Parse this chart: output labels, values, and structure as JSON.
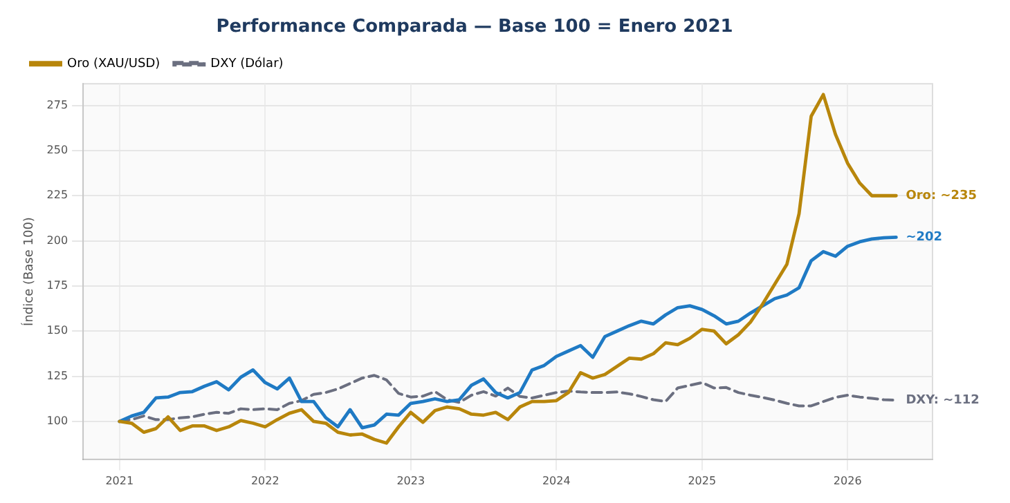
{
  "chart_data": {
    "type": "line",
    "title": "Performance Comparada — Base 100 = Enero 2021",
    "ylabel": "Índice (Base 100)",
    "x": [
      "2021-01",
      "2021-02",
      "2021-03",
      "2021-04",
      "2021-05",
      "2021-06",
      "2021-07",
      "2021-08",
      "2021-09",
      "2021-10",
      "2021-11",
      "2021-12",
      "2022-01",
      "2022-02",
      "2022-03",
      "2022-04",
      "2022-05",
      "2022-06",
      "2022-07",
      "2022-08",
      "2022-09",
      "2022-10",
      "2022-11",
      "2022-12",
      "2023-01",
      "2023-02",
      "2023-03",
      "2023-04",
      "2023-05",
      "2023-06",
      "2023-07",
      "2023-08",
      "2023-09",
      "2023-10",
      "2023-11",
      "2023-12",
      "2024-01",
      "2024-02",
      "2024-03",
      "2024-04",
      "2024-05",
      "2024-06",
      "2024-07",
      "2024-08",
      "2024-09",
      "2024-10",
      "2024-11",
      "2024-12",
      "2025-01",
      "2025-02",
      "2025-03",
      "2025-04",
      "2025-05",
      "2025-06",
      "2025-07",
      "2025-08",
      "2025-09",
      "2025-10",
      "2025-11",
      "2025-12",
      "2026-01",
      "2026-02",
      "2026-03",
      "2026-04",
      "2026-05"
    ],
    "series": [
      {
        "name": "Oro (XAU/USD)",
        "color": "#b8860b",
        "line_style": "solid",
        "values": [
          100,
          99,
          94,
          96,
          102.5,
          95,
          97.5,
          97.5,
          95,
          97,
          100.5,
          99,
          97,
          101,
          104.5,
          106.5,
          100,
          99,
          94,
          92.5,
          93,
          90,
          88,
          97,
          105,
          99.5,
          106,
          108,
          107,
          104,
          103.5,
          105,
          101,
          108,
          111,
          111,
          111.5,
          116,
          127,
          124,
          126,
          130.5,
          135,
          134.5,
          137.5,
          143.5,
          142.5,
          146,
          151,
          150,
          143,
          148,
          155,
          165,
          176,
          187,
          215,
          269,
          281,
          259,
          243,
          232,
          225,
          225,
          225
        ]
      },
      {
        "color": "#1f7ac4",
        "line_style": "solid",
        "values": [
          100,
          103,
          105,
          113,
          113.5,
          116,
          116.5,
          119.5,
          122,
          117.5,
          124.5,
          128.5,
          121.5,
          118,
          124,
          111,
          111,
          102,
          97,
          106.5,
          96.5,
          98,
          104,
          103.5,
          110,
          111,
          112.5,
          111,
          112,
          120,
          123.5,
          116,
          113,
          116,
          128.5,
          131,
          136,
          139,
          142,
          135.5,
          147,
          150,
          153,
          155.5,
          154,
          159,
          163,
          164,
          162,
          158.5,
          154,
          155.5,
          160,
          164,
          168,
          170,
          174,
          189,
          194,
          191.5,
          197,
          199.5,
          201,
          201.7,
          202
        ]
      },
      {
        "name": "DXY (Dólar)",
        "color": "#6b6f80",
        "line_style": "dashed",
        "values": [
          100,
          101,
          103,
          101,
          101,
          102,
          102.5,
          104,
          105,
          104.5,
          107,
          106.5,
          107,
          106.5,
          110,
          111.5,
          115,
          116,
          118,
          121,
          124,
          125.5,
          123,
          115.5,
          113.5,
          114,
          116.5,
          112,
          110.5,
          114.5,
          116.5,
          114,
          118.5,
          113.8,
          113,
          114.5,
          116,
          116.8,
          116.3,
          116,
          116,
          116.3,
          115.3,
          113.8,
          112,
          111,
          118.5,
          120,
          121.5,
          118.5,
          118.8,
          116,
          114.5,
          113.3,
          111.8,
          110,
          108.6,
          108.6,
          111,
          113.3,
          114.5,
          113.5,
          112.8,
          112,
          111.8
        ]
      }
    ],
    "xlim": [
      "2020-10",
      "2026-08"
    ],
    "xticks": [
      "2021",
      "2022",
      "2023",
      "2024",
      "2025",
      "2026"
    ],
    "ylim": [
      79,
      287
    ],
    "yticks": [
      100,
      125,
      150,
      175,
      200,
      225,
      250,
      275
    ],
    "grid": true,
    "legend": "top left",
    "marker": "none",
    "annotations": [
      {
        "text": "Oro: ~235",
        "x": "2026-05",
        "y": 225
      },
      {
        "text": "~202",
        "x": "2026-05",
        "y": 202
      },
      {
        "text": "DXY: ~112",
        "x": "2026-05",
        "y": 111.8
      }
    ]
  }
}
